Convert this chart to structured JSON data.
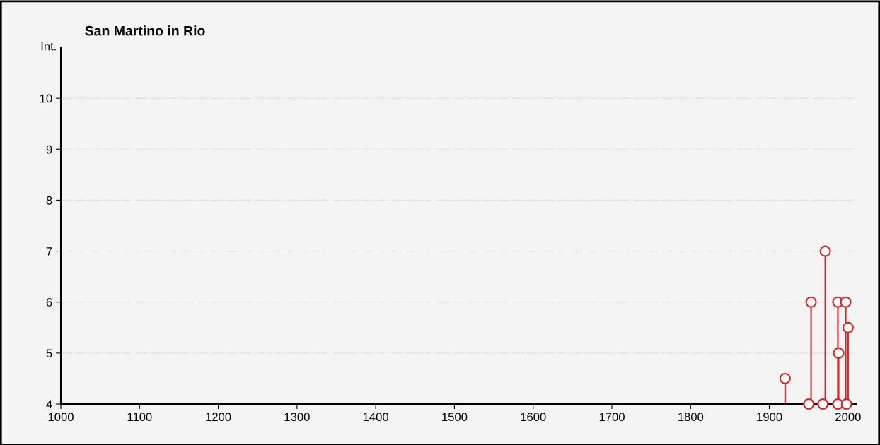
{
  "chart_data": {
    "type": "lollipop",
    "title": "San Martino in Rio",
    "ylabel": "Int.",
    "x": [
      1920,
      1950,
      1953,
      1968,
      1971,
      1987,
      1987,
      1988,
      1997,
      1998,
      2000
    ],
    "values": [
      4.5,
      4,
      6,
      4,
      7,
      4,
      6,
      5,
      6,
      4,
      5.5
    ],
    "color": "#e02020",
    "marker": "circle",
    "xlim": [
      1000,
      2010
    ],
    "xticks": [
      1000,
      1100,
      1200,
      1300,
      1400,
      1500,
      1600,
      1700,
      1800,
      1900,
      2000
    ],
    "ylim": [
      4,
      11
    ],
    "yticks": [
      4,
      5,
      6,
      7,
      8,
      9,
      10
    ],
    "grid": "y"
  }
}
